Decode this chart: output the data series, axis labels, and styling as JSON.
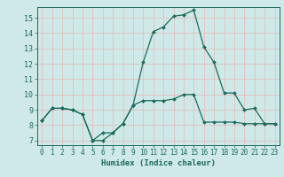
{
  "title": "",
  "xlabel": "Humidex (Indice chaleur)",
  "background_color": "#cfe8e8",
  "grid_color": "#b8d8d8",
  "line_color": "#1a6b5a",
  "x_ticks": [
    0,
    1,
    2,
    3,
    4,
    5,
    6,
    7,
    8,
    9,
    10,
    11,
    12,
    13,
    14,
    15,
    16,
    17,
    18,
    19,
    20,
    21,
    22,
    23
  ],
  "y_ticks": [
    7,
    8,
    9,
    10,
    11,
    12,
    13,
    14,
    15
  ],
  "ylim": [
    6.7,
    15.7
  ],
  "xlim": [
    -0.5,
    23.5
  ],
  "line1_x": [
    0,
    1,
    2,
    3,
    4,
    5,
    6,
    7,
    8,
    9,
    10,
    11,
    12,
    13,
    14,
    15,
    16,
    17,
    18,
    19,
    20,
    21,
    22,
    23
  ],
  "line1_y": [
    8.3,
    9.1,
    9.1,
    9.0,
    8.7,
    7.0,
    7.0,
    7.5,
    8.1,
    9.3,
    9.6,
    9.6,
    9.6,
    9.7,
    10.0,
    10.0,
    8.2,
    8.2,
    8.2,
    8.2,
    8.1,
    8.1,
    8.1,
    8.1
  ],
  "line2_x": [
    0,
    1,
    2,
    3,
    4,
    5,
    6,
    7,
    8,
    9,
    10,
    11,
    12,
    13,
    14,
    15,
    16,
    17,
    18,
    19,
    20,
    21,
    22,
    23
  ],
  "line2_y": [
    8.3,
    9.1,
    9.1,
    9.0,
    8.7,
    7.0,
    7.5,
    7.5,
    8.1,
    9.3,
    12.1,
    14.1,
    14.4,
    15.1,
    15.2,
    15.5,
    13.1,
    12.1,
    10.1,
    10.1,
    9.0,
    9.1,
    8.1,
    8.1
  ],
  "font_size_tick": 5.5,
  "font_size_xlabel": 6.5
}
